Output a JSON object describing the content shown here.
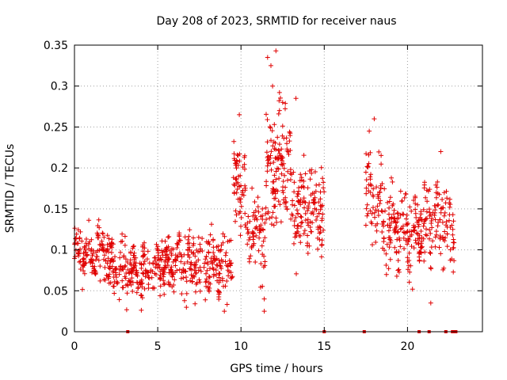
{
  "chart_data": {
    "type": "scatter",
    "title": "Day 208 of 2023, SRMTID for receiver naus",
    "xlabel": "GPS time / hours",
    "ylabel": "SRMTID / TECUs",
    "xlim": [
      0,
      24.5
    ],
    "ylim": [
      0,
      0.35
    ],
    "x_ticks": [
      0,
      5,
      10,
      15,
      20
    ],
    "x_tick_labels": [
      "0",
      "5",
      "10",
      "15",
      "20"
    ],
    "y_ticks": [
      0,
      0.05,
      0.1,
      0.15,
      0.2,
      0.25,
      0.3,
      0.35
    ],
    "y_tick_labels": [
      "0",
      "0.05",
      "0.1",
      "0.15",
      "0.2",
      "0.25",
      "0.3",
      "0.35"
    ],
    "grid": true,
    "marker": "+",
    "color": "#e00000",
    "segments": [
      {
        "x_start": 0.0,
        "x_end": 2.0,
        "y_center": 0.095,
        "spread": 0.025,
        "count": 130
      },
      {
        "x_start": 2.0,
        "x_end": 5.0,
        "y_center": 0.075,
        "spread": 0.025,
        "count": 200
      },
      {
        "x_start": 5.0,
        "x_end": 9.5,
        "y_center": 0.085,
        "spread": 0.03,
        "count": 300
      },
      {
        "x_start": 9.5,
        "x_end": 10.3,
        "y_center": 0.18,
        "spread": 0.04,
        "count": 60
      },
      {
        "x_start": 10.3,
        "x_end": 11.5,
        "y_center": 0.12,
        "spread": 0.04,
        "count": 70
      },
      {
        "x_start": 11.5,
        "x_end": 13.0,
        "y_center": 0.2,
        "spread": 0.06,
        "count": 130
      },
      {
        "x_start": 13.0,
        "x_end": 15.0,
        "y_center": 0.15,
        "spread": 0.04,
        "count": 140
      },
      {
        "x_start": 17.5,
        "x_end": 18.5,
        "y_center": 0.16,
        "spread": 0.04,
        "count": 60
      },
      {
        "x_start": 18.5,
        "x_end": 21.0,
        "y_center": 0.125,
        "spread": 0.035,
        "count": 180
      },
      {
        "x_start": 21.0,
        "x_end": 22.8,
        "y_center": 0.13,
        "spread": 0.04,
        "count": 110
      }
    ],
    "extreme_points": [
      {
        "x": 11.6,
        "y": 0.335
      },
      {
        "x": 11.8,
        "y": 0.325
      },
      {
        "x": 12.1,
        "y": 0.343
      },
      {
        "x": 11.9,
        "y": 0.3
      },
      {
        "x": 12.5,
        "y": 0.28
      },
      {
        "x": 13.3,
        "y": 0.285
      },
      {
        "x": 9.9,
        "y": 0.265
      },
      {
        "x": 18.0,
        "y": 0.26
      },
      {
        "x": 17.7,
        "y": 0.245
      },
      {
        "x": 22.0,
        "y": 0.22
      },
      {
        "x": 11.4,
        "y": 0.025
      },
      {
        "x": 11.4,
        "y": 0.04
      },
      {
        "x": 9.0,
        "y": 0.025
      },
      {
        "x": 21.4,
        "y": 0.035
      },
      {
        "x": 20.3,
        "y": 0.052
      }
    ],
    "zero_points_x": [
      3.2,
      15.0,
      17.4,
      20.7,
      21.3,
      22.3,
      22.7,
      22.8,
      22.9
    ]
  }
}
